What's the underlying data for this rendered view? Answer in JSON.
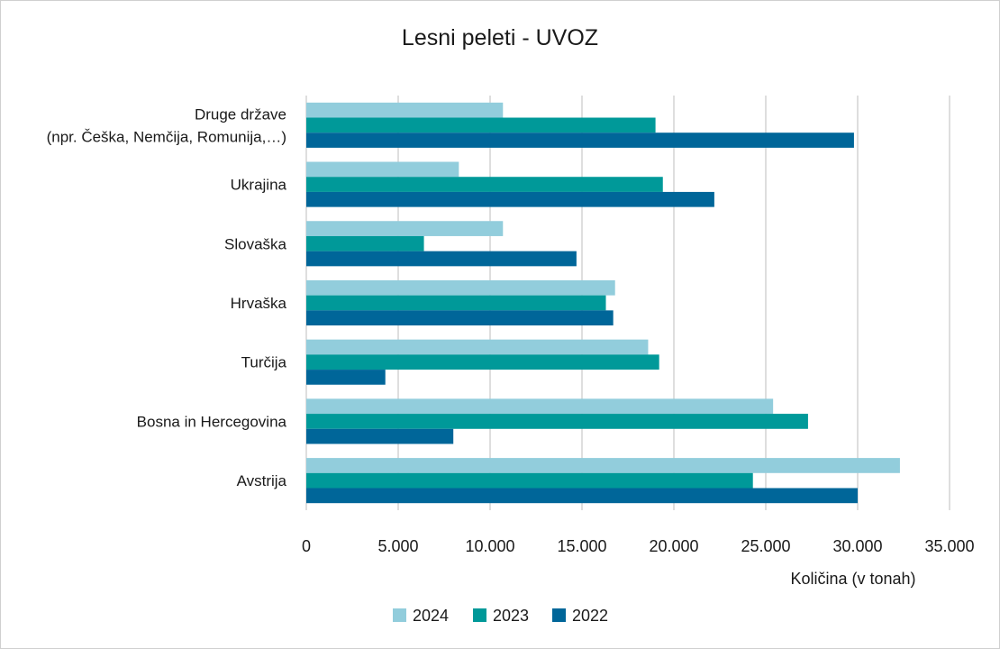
{
  "chart_data": {
    "type": "bar",
    "orientation": "horizontal",
    "title": "Lesni peleti - UVOZ",
    "xlabel": "Količina (v tonah)",
    "ylabel": "",
    "xlim": [
      0,
      35000
    ],
    "x_ticks": [
      0,
      5000,
      10000,
      15000,
      20000,
      25000,
      30000,
      35000
    ],
    "x_tick_labels": [
      "0",
      "5.000",
      "10.000",
      "15.000",
      "20.000",
      "25.000",
      "30.000",
      "35.000"
    ],
    "grid": "vertical",
    "legend_position": "bottom",
    "categories": [
      [
        "Druge države",
        "(npr. Češka, Nemčija, Romunija,…)"
      ],
      [
        "Ukrajina"
      ],
      [
        "Slovaška"
      ],
      [
        "Hrvaška"
      ],
      [
        "Turčija"
      ],
      [
        "Bosna in Hercegovina"
      ],
      [
        "Avstrija"
      ]
    ],
    "series": [
      {
        "name": "2024",
        "color": "#92cddc",
        "values": [
          10700,
          8300,
          10700,
          16800,
          18600,
          25400,
          32300
        ]
      },
      {
        "name": "2023",
        "color": "#009999",
        "values": [
          19000,
          19400,
          6400,
          16300,
          19200,
          27300,
          24300
        ]
      },
      {
        "name": "2022",
        "color": "#006699",
        "values": [
          29800,
          22200,
          14700,
          16700,
          4300,
          8000,
          30000
        ]
      }
    ]
  }
}
